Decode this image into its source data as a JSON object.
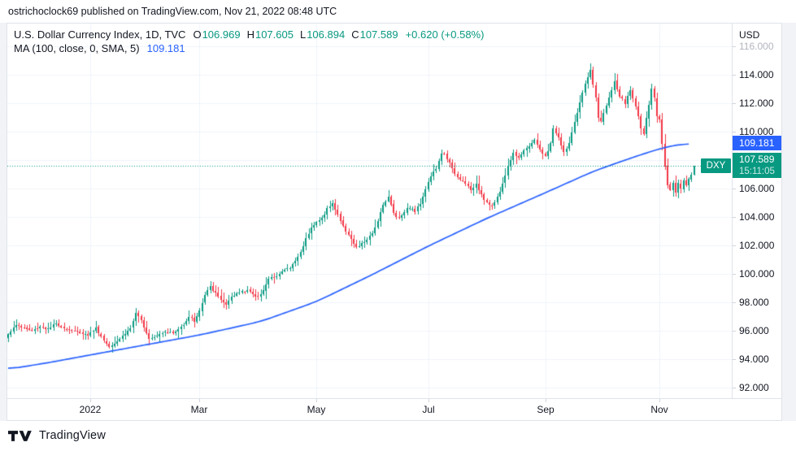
{
  "header": {
    "publish_line": "ostrichoclock69 published on TradingView.com, Nov 21, 2022 08:48 UTC"
  },
  "legend": {
    "title": "U.S. Dollar Currency Index, 1D, TVC",
    "open_label": "O",
    "open": "106.969",
    "high_label": "H",
    "high": "107.605",
    "low_label": "L",
    "low": "106.894",
    "close_label": "C",
    "close": "107.589",
    "change": "+0.620 (+0.58%)",
    "ma_label": "MA (100, close, 0, SMA, 5)",
    "ma_value": "109.181"
  },
  "price_axis": {
    "currency": "USD",
    "labels": [
      {
        "text": "116.000",
        "value": 116
      },
      {
        "text": "114.000",
        "value": 114
      },
      {
        "text": "112.000",
        "value": 112
      },
      {
        "text": "110.000",
        "value": 110
      },
      {
        "text": "108.000",
        "value": 108
      },
      {
        "text": "106.000",
        "value": 106
      },
      {
        "text": "104.000",
        "value": 104
      },
      {
        "text": "102.000",
        "value": 102
      },
      {
        "text": "100.000",
        "value": 100
      },
      {
        "text": "98.000",
        "value": 98
      },
      {
        "text": "96.000",
        "value": 96
      },
      {
        "text": "94.000",
        "value": 94
      },
      {
        "text": "92.000",
        "value": 92
      }
    ]
  },
  "badges": {
    "ma_value": "109.181",
    "last_symbol": "DXY",
    "last_price": "107.589",
    "countdown": "15:11:05"
  },
  "time_axis": {
    "ticks": [
      {
        "label": "2022",
        "bar": 31
      },
      {
        "label": "Mar",
        "bar": 72
      },
      {
        "label": "May",
        "bar": 116
      },
      {
        "label": "Jul",
        "bar": 158
      },
      {
        "label": "Sep",
        "bar": 202
      },
      {
        "label": "Nov",
        "bar": 245
      }
    ]
  },
  "footer": {
    "brand": "TradingView"
  },
  "colors": {
    "up": "#089981",
    "down": "#f23645",
    "ma_line": "#2962ff",
    "grid": "#f0f3fa",
    "text": "#131722",
    "muted": "#b2b5be",
    "border": "#e0e3eb",
    "badge_ma": "#2962ff",
    "badge_last": "#089981",
    "page_bg": "#f1f3f6",
    "chart_bg": "#ffffff"
  },
  "chart_data": {
    "type": "candlestick",
    "title": "U.S. Dollar Currency Index",
    "symbol": "DXY",
    "exchange": "TVC",
    "timeframe": "1D",
    "price_range": [
      92,
      116
    ],
    "grid_step": 2,
    "bars_total": 259,
    "current_price": 107.589,
    "last_bar": {
      "open": 106.969,
      "high": 107.605,
      "low": 106.894,
      "close": 107.589
    },
    "overlay_line": {
      "name": "SMA 100",
      "last_value": 109.181
    },
    "close_anchors": [
      [
        0,
        95.8
      ],
      [
        3,
        96.4
      ],
      [
        6,
        96.2
      ],
      [
        9,
        96.0
      ],
      [
        12,
        96.3
      ],
      [
        15,
        96.1
      ],
      [
        18,
        96.5
      ],
      [
        21,
        96.2
      ],
      [
        24,
        96.0
      ],
      [
        27,
        95.9
      ],
      [
        30,
        95.7
      ],
      [
        33,
        96.2
      ],
      [
        36,
        95.3
      ],
      [
        38,
        94.9
      ],
      [
        41,
        95.3
      ],
      [
        44,
        95.8
      ],
      [
        46,
        96.2
      ],
      [
        48,
        97.2
      ],
      [
        50,
        96.7
      ],
      [
        53,
        95.5
      ],
      [
        56,
        95.7
      ],
      [
        59,
        96.0
      ],
      [
        62,
        95.8
      ],
      [
        64,
        96.1
      ],
      [
        66,
        96.5
      ],
      [
        68,
        97.0
      ],
      [
        70,
        96.7
      ],
      [
        72,
        97.4
      ],
      [
        74,
        98.5
      ],
      [
        76,
        99.1
      ],
      [
        78,
        98.6
      ],
      [
        80,
        98.2
      ],
      [
        82,
        97.8
      ],
      [
        84,
        98.3
      ],
      [
        86,
        98.6
      ],
      [
        88,
        98.8
      ],
      [
        90,
        98.9
      ],
      [
        92,
        98.5
      ],
      [
        94,
        98.4
      ],
      [
        96,
        98.9
      ],
      [
        98,
        99.6
      ],
      [
        100,
        99.8
      ],
      [
        102,
        100.0
      ],
      [
        104,
        100.3
      ],
      [
        106,
        100.4
      ],
      [
        108,
        100.9
      ],
      [
        110,
        101.5
      ],
      [
        112,
        102.5
      ],
      [
        114,
        103.3
      ],
      [
        116,
        103.6
      ],
      [
        118,
        103.9
      ],
      [
        120,
        104.6
      ],
      [
        122,
        104.9
      ],
      [
        124,
        104.2
      ],
      [
        126,
        103.3
      ],
      [
        128,
        102.8
      ],
      [
        130,
        102.1
      ],
      [
        131,
        101.8
      ],
      [
        133,
        102.1
      ],
      [
        135,
        102.4
      ],
      [
        137,
        102.8
      ],
      [
        139,
        103.8
      ],
      [
        141,
        104.9
      ],
      [
        143,
        105.4
      ],
      [
        145,
        104.3
      ],
      [
        147,
        103.9
      ],
      [
        149,
        104.4
      ],
      [
        151,
        104.7
      ],
      [
        153,
        104.4
      ],
      [
        155,
        105.0
      ],
      [
        157,
        106.0
      ],
      [
        159,
        106.9
      ],
      [
        161,
        107.4
      ],
      [
        163,
        108.4
      ],
      [
        164,
        108.5
      ],
      [
        166,
        107.8
      ],
      [
        168,
        107.0
      ],
      [
        170,
        106.6
      ],
      [
        172,
        106.4
      ],
      [
        174,
        105.8
      ],
      [
        176,
        106.4
      ],
      [
        178,
        105.6
      ],
      [
        180,
        105.0
      ],
      [
        182,
        104.7
      ],
      [
        184,
        105.4
      ],
      [
        186,
        106.3
      ],
      [
        188,
        107.6
      ],
      [
        190,
        108.5
      ],
      [
        192,
        108.2
      ],
      [
        194,
        108.7
      ],
      [
        196,
        108.9
      ],
      [
        198,
        109.5
      ],
      [
        200,
        108.7
      ],
      [
        202,
        108.2
      ],
      [
        204,
        109.2
      ],
      [
        205,
        110.2
      ],
      [
        207,
        109.6
      ],
      [
        209,
        108.5
      ],
      [
        211,
        109.2
      ],
      [
        213,
        110.6
      ],
      [
        215,
        112.0
      ],
      [
        217,
        113.4
      ],
      [
        219,
        114.3
      ],
      [
        220,
        113.3
      ],
      [
        221,
        112.4
      ],
      [
        222,
        110.9
      ],
      [
        223,
        110.7
      ],
      [
        225,
        111.9
      ],
      [
        227,
        112.9
      ],
      [
        228,
        113.5
      ],
      [
        230,
        112.5
      ],
      [
        232,
        112.0
      ],
      [
        234,
        112.9
      ],
      [
        236,
        111.8
      ],
      [
        238,
        110.3
      ],
      [
        239,
        109.9
      ],
      [
        240,
        110.9
      ],
      [
        241,
        111.8
      ],
      [
        242,
        113.0
      ],
      [
        243,
        112.3
      ],
      [
        244,
        111.1
      ],
      [
        245,
        110.8
      ],
      [
        246,
        109.2
      ],
      [
        247,
        107.6
      ],
      [
        248,
        106.3
      ],
      [
        249,
        105.9
      ],
      [
        250,
        106.4
      ],
      [
        251,
        105.7
      ],
      [
        252,
        106.3
      ],
      [
        253,
        106.0
      ],
      [
        254,
        106.5
      ],
      [
        255,
        106.2
      ],
      [
        256,
        106.7
      ],
      [
        257,
        107.0
      ],
      [
        258,
        107.589
      ]
    ],
    "wick_overrides": {
      "219": {
        "high": 114.78
      },
      "252": {
        "low": 105.3
      },
      "258": {
        "open": 106.969,
        "high": 107.605,
        "low": 106.894,
        "close": 107.589
      }
    },
    "ma_anchors": [
      [
        0,
        93.3
      ],
      [
        15,
        93.75
      ],
      [
        31,
        94.3
      ],
      [
        50,
        94.95
      ],
      [
        72,
        95.7
      ],
      [
        95,
        96.65
      ],
      [
        116,
        98.05
      ],
      [
        137,
        99.95
      ],
      [
        158,
        101.95
      ],
      [
        180,
        103.9
      ],
      [
        202,
        105.7
      ],
      [
        220,
        107.2
      ],
      [
        232,
        108.0
      ],
      [
        240,
        108.5
      ],
      [
        246,
        108.85
      ],
      [
        251,
        109.05
      ],
      [
        256,
        109.18
      ]
    ]
  }
}
